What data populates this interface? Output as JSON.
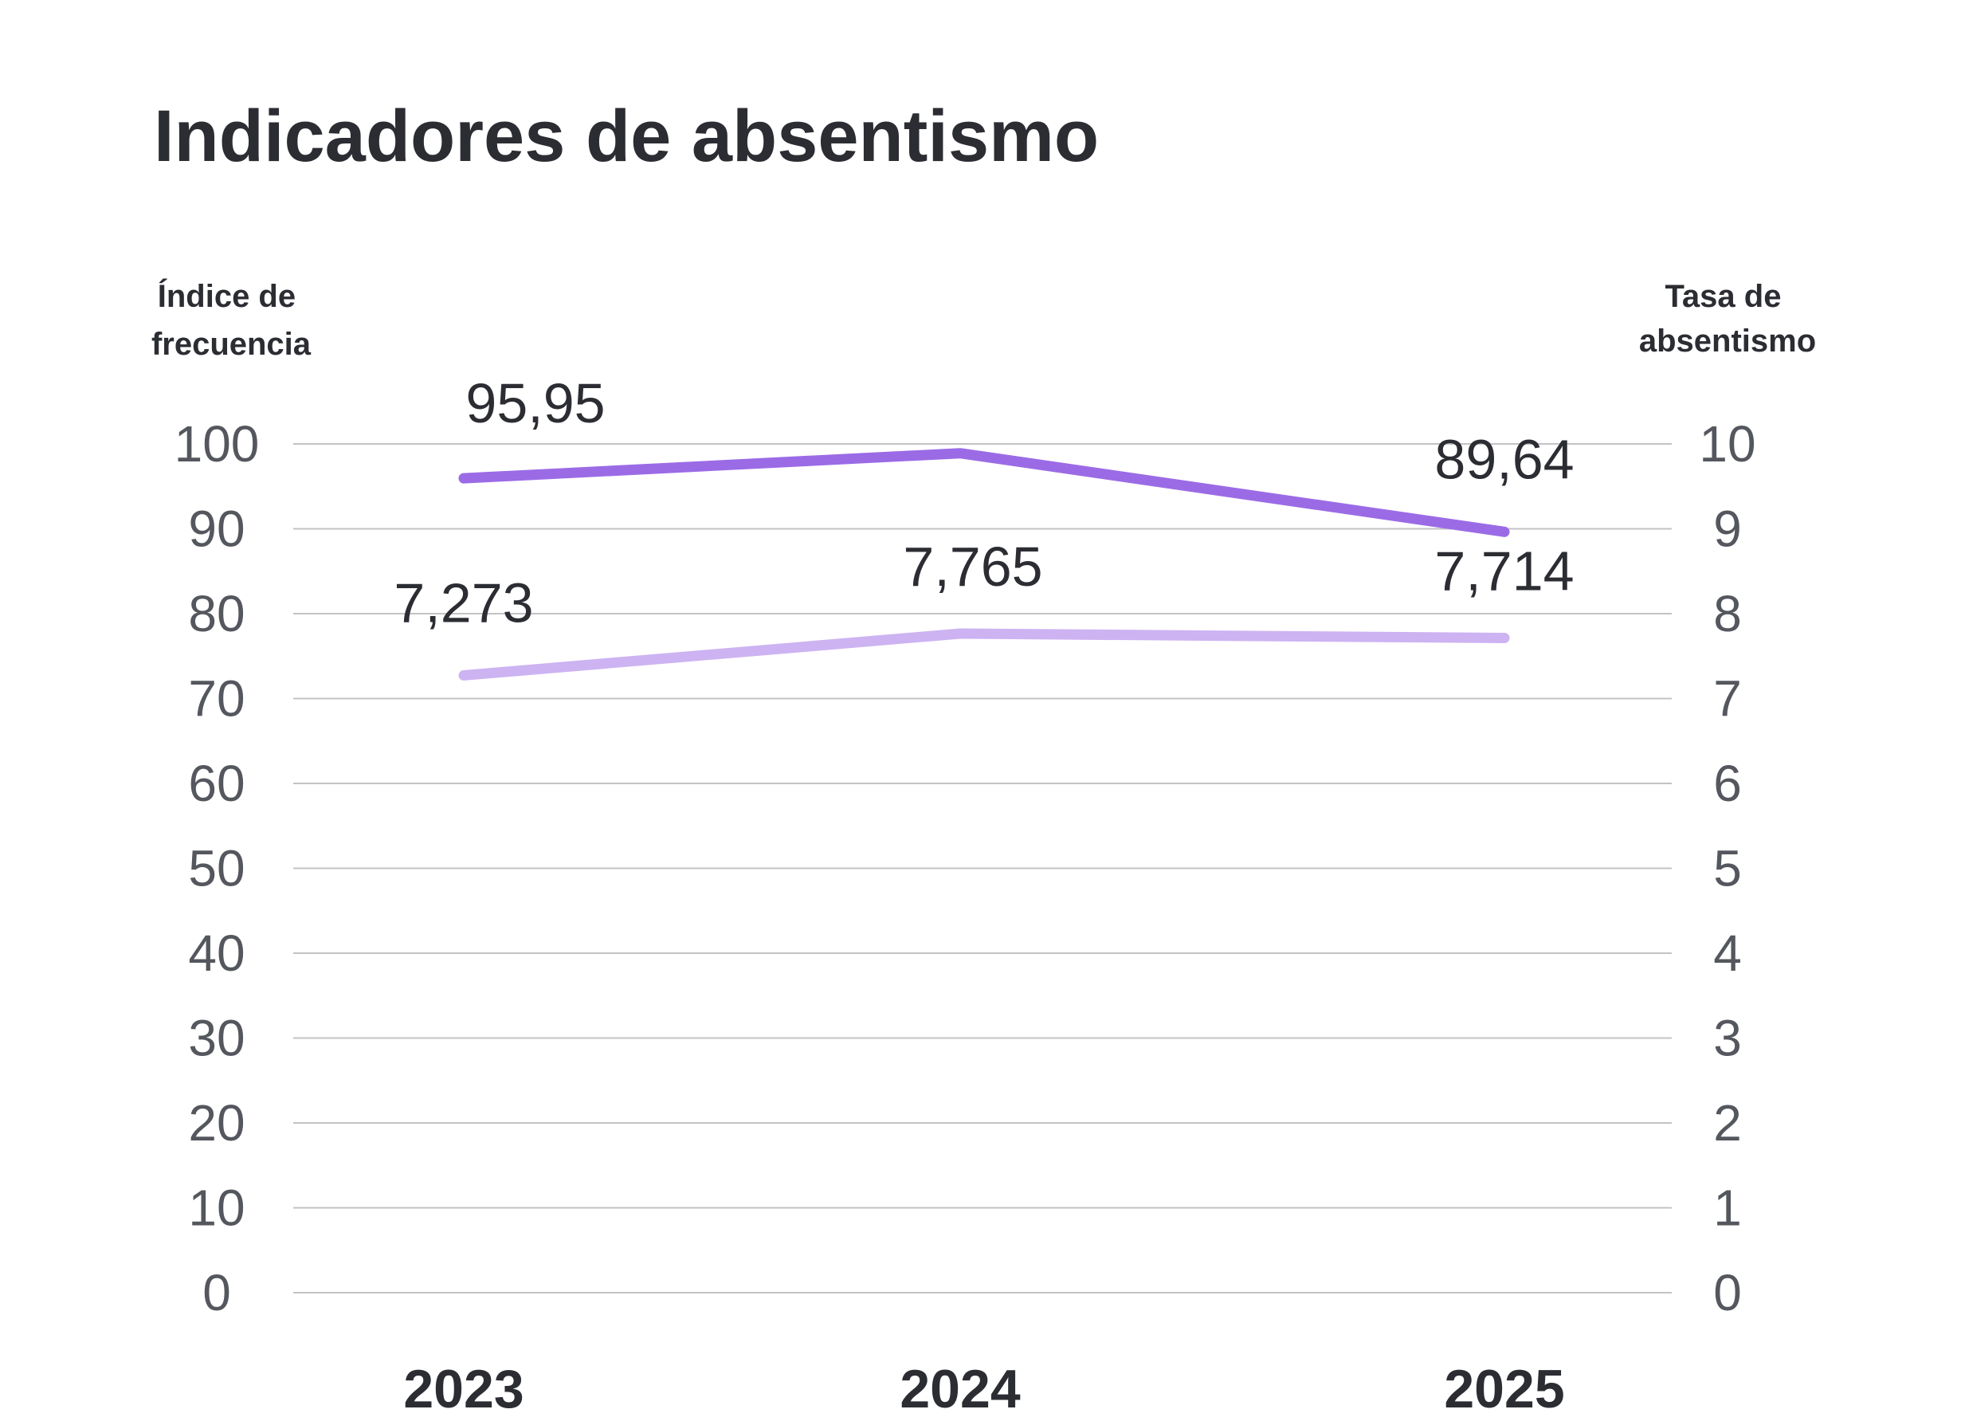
{
  "chart_data": {
    "type": "line",
    "title": "Indicadores de absentismo",
    "y_left_label": [
      "Índice de",
      "frecuencia"
    ],
    "y_right_label": [
      "Tasa de",
      "absentismo"
    ],
    "categories": [
      "2023",
      "2024",
      "2025"
    ],
    "y_left_ticks": [
      "0",
      "10",
      "20",
      "30",
      "40",
      "50",
      "60",
      "70",
      "80",
      "90",
      "100"
    ],
    "y_right_ticks": [
      "0",
      "1",
      "2",
      "3",
      "4",
      "5",
      "6",
      "7",
      "8",
      "9",
      "10"
    ],
    "ylim_left": [
      0,
      100
    ],
    "ylim_right": [
      0,
      10
    ],
    "grid": true,
    "series": [
      {
        "axis": "left",
        "color": "#9b6be6",
        "values": [
          95.95,
          98.9,
          89.64
        ],
        "labels": [
          "95,95",
          "",
          "89,64"
        ]
      },
      {
        "axis": "right",
        "color": "#cdb3f2",
        "values": [
          7.273,
          7.765,
          7.714
        ],
        "labels": [
          "7,273",
          "7,765",
          "7,714"
        ]
      }
    ]
  }
}
